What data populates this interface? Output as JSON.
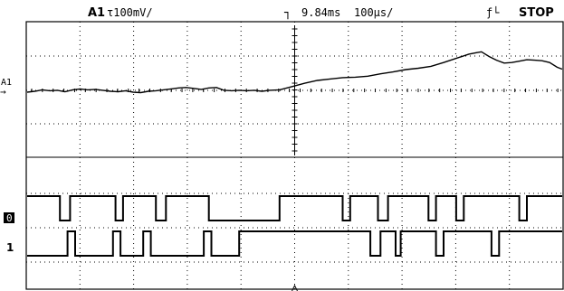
{
  "status_bar": {
    "channel_label": "A1",
    "channel_scale": "τ100mV/",
    "trigger_symbol": "┐",
    "timebase_delay": "9.84ms",
    "timebase_scale": "100µs/",
    "trigger_mode_symbol": "ƒ└",
    "run_state": "STOP"
  },
  "markers": {
    "analog_channel": "A1",
    "analog_ground": "→",
    "digital_ch0": "0",
    "digital_ch1": "1"
  },
  "colors": {
    "background": "#ffffff",
    "trace": "#000000"
  },
  "traces": {
    "analog_samples": [
      [
        0,
        0.0
      ],
      [
        3,
        0.2
      ],
      [
        6,
        0.5
      ],
      [
        9,
        0.3
      ],
      [
        12,
        0.4
      ],
      [
        15,
        0.1
      ],
      [
        18,
        0.5
      ],
      [
        21,
        0.7
      ],
      [
        24,
        0.5
      ],
      [
        27,
        0.6
      ],
      [
        30,
        0.4
      ],
      [
        33,
        0.2
      ],
      [
        36,
        0.1
      ],
      [
        39,
        0.3
      ],
      [
        42,
        0.0
      ],
      [
        45,
        -0.1
      ],
      [
        48,
        0.2
      ],
      [
        51,
        0.3
      ],
      [
        54,
        0.5
      ],
      [
        57,
        0.7
      ],
      [
        60,
        0.9
      ],
      [
        63,
        1.0
      ],
      [
        66,
        0.8
      ],
      [
        69,
        0.6
      ],
      [
        72,
        0.9
      ],
      [
        75,
        1.0
      ],
      [
        78,
        0.4
      ],
      [
        81,
        0.3
      ],
      [
        84,
        0.4
      ],
      [
        87,
        0.3
      ],
      [
        90,
        0.4
      ],
      [
        93,
        0.2
      ],
      [
        96,
        0.4
      ],
      [
        100,
        0.5
      ],
      [
        105,
        1.2
      ],
      [
        110,
        1.9
      ],
      [
        115,
        2.5
      ],
      [
        120,
        2.8
      ],
      [
        125,
        3.1
      ],
      [
        130,
        3.2
      ],
      [
        135,
        3.4
      ],
      [
        140,
        3.9
      ],
      [
        145,
        4.3
      ],
      [
        150,
        4.8
      ],
      [
        155,
        5.1
      ],
      [
        160,
        5.5
      ],
      [
        165,
        6.3
      ],
      [
        170,
        7.2
      ],
      [
        175,
        8.1
      ],
      [
        178,
        8.4
      ],
      [
        180,
        8.6
      ],
      [
        183,
        7.6
      ],
      [
        186,
        6.8
      ],
      [
        189,
        6.2
      ],
      [
        192,
        6.3
      ],
      [
        195,
        6.6
      ],
      [
        198,
        6.9
      ],
      [
        201,
        6.8
      ],
      [
        204,
        6.7
      ],
      [
        207,
        6.3
      ],
      [
        210,
        5.3
      ],
      [
        212,
        4.9
      ]
    ],
    "digital_ch0_edges": [
      0,
      13,
      17,
      35,
      38,
      51,
      55,
      72,
      100,
      125,
      128,
      139,
      143,
      159,
      162,
      170,
      173,
      195,
      198,
      212
    ],
    "digital_ch0_initial": 1,
    "digital_ch1_edges": [
      0,
      16,
      19,
      34,
      37,
      46,
      49,
      70,
      73,
      84,
      136,
      140,
      146,
      148,
      162,
      165,
      184,
      187,
      212
    ],
    "digital_ch1_initial": 0
  }
}
